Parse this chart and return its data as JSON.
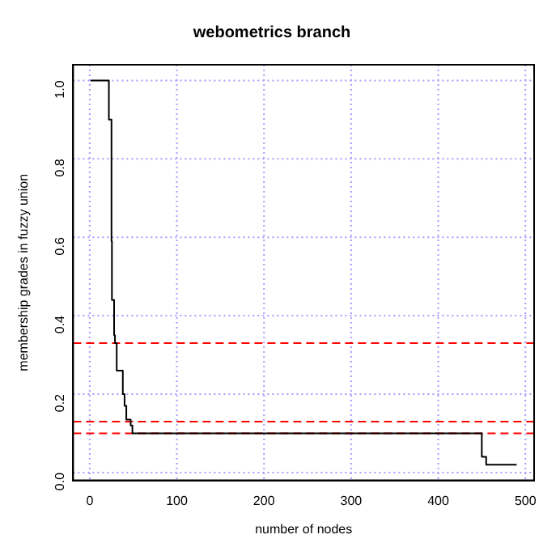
{
  "chart_data": {
    "type": "step",
    "title": "webometrics branch",
    "xlabel": "number of nodes",
    "ylabel": "membership grades in fuzzy union",
    "x": [
      1,
      22,
      25,
      25.5,
      28,
      29,
      31,
      38,
      40,
      42,
      47,
      49,
      55,
      450,
      455,
      460,
      490
    ],
    "series": [
      {
        "color": "#000000",
        "values": [
          1,
          0.9,
          0.59,
          0.44,
          0.35,
          0.33,
          0.26,
          0.2,
          0.17,
          0.135,
          0.12,
          0.1,
          0.1,
          0.04,
          0.02,
          0.02,
          0.02
        ]
      }
    ],
    "xlim": [
      -19,
      510
    ],
    "xticks": [
      0,
      100,
      200,
      300,
      400,
      500
    ],
    "ylim": [
      -0.02,
      1.04
    ],
    "yticks": [
      {
        "value": 0,
        "label": "0.0"
      },
      0.2,
      0.4,
      0.6,
      0.8,
      {
        "value": 1,
        "label": "1.0"
      }
    ],
    "grid": true,
    "legend": false,
    "line_style": "solid",
    "marker": "none",
    "ref_lines": [
      {
        "axis": "y",
        "value": 0.33,
        "color": "#ff0000",
        "line_style": "dashed"
      },
      {
        "axis": "y",
        "value": 0.13,
        "color": "#ff0000",
        "line_style": "dashed"
      },
      {
        "axis": "y",
        "value": 0.1,
        "color": "#ff0000",
        "line_style": "dashed"
      }
    ]
  }
}
